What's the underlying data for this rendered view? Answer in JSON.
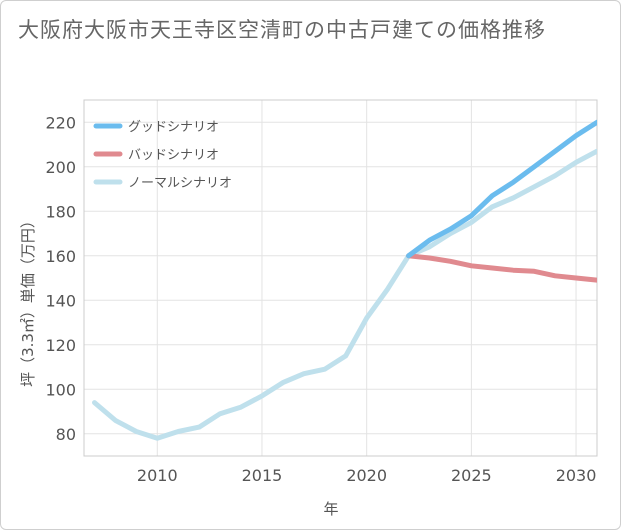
{
  "chart_data": {
    "type": "line",
    "title": "大阪府大阪市天王寺区空清町の中古戸建ての価格推移",
    "xlabel": "年",
    "ylabel": "坪（3.3㎡）単価（万円）",
    "xlim": [
      2006.5,
      2031
    ],
    "ylim": [
      70,
      230
    ],
    "x_ticks": [
      "2010",
      "2015",
      "2020",
      "2025",
      "2030"
    ],
    "y_ticks": [
      "80",
      "100",
      "120",
      "140",
      "160",
      "180",
      "200",
      "220"
    ],
    "legend_position": "top-left",
    "series": [
      {
        "name": "グッドシナリオ",
        "color": "#6bbcee",
        "x": [
          2022,
          2023,
          2024,
          2025,
          2026,
          2027,
          2028,
          2029,
          2030,
          2031
        ],
        "values": [
          160,
          167,
          172,
          178,
          187,
          193,
          200,
          207,
          214,
          220
        ]
      },
      {
        "name": "バッドシナリオ",
        "color": "#e08a8f",
        "x": [
          2022,
          2023,
          2024,
          2025,
          2026,
          2027,
          2028,
          2029,
          2030,
          2031
        ],
        "values": [
          160,
          159,
          157.5,
          155.5,
          154.5,
          153.5,
          153,
          151,
          150,
          149
        ]
      },
      {
        "name": "ノーマルシナリオ",
        "color": "#bfe0ec",
        "x": [
          2007,
          2008,
          2009,
          2010,
          2011,
          2012,
          2013,
          2014,
          2015,
          2016,
          2017,
          2018,
          2019,
          2020,
          2021,
          2022,
          2023,
          2024,
          2025,
          2026,
          2027,
          2028,
          2029,
          2030,
          2031
        ],
        "values": [
          94,
          86,
          81,
          78,
          81,
          83,
          89,
          92,
          97,
          103,
          107,
          109,
          115,
          132,
          145,
          160,
          164,
          170,
          175,
          182,
          186,
          191,
          196,
          202,
          207
        ]
      }
    ]
  }
}
